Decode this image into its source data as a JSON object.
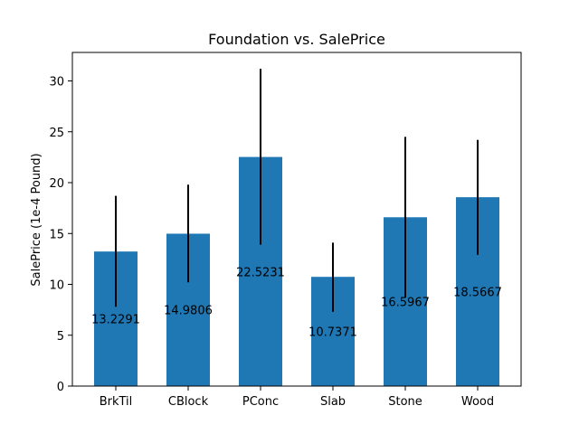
{
  "chart_data": {
    "type": "bar",
    "title": "Foundation vs. SalePrice",
    "xlabel": "",
    "ylabel": "SalePrice (1e-4 Pound)",
    "categories": [
      "BrkTil",
      "CBlock",
      "PConc",
      "Slab",
      "Stone",
      "Wood"
    ],
    "values": [
      13.2291,
      14.9806,
      22.5231,
      10.7371,
      16.5967,
      18.5667
    ],
    "value_labels": [
      "13.2291",
      "14.9806",
      "22.5231",
      "10.7371",
      "16.5967",
      "18.5667"
    ],
    "error_low": [
      7.8,
      10.2,
      13.9,
      7.3,
      8.7,
      12.9
    ],
    "error_high": [
      18.7,
      19.8,
      31.2,
      14.1,
      24.5,
      24.2
    ],
    "ylim": [
      0,
      32.8
    ],
    "yticks": [
      0,
      5,
      10,
      15,
      20,
      25,
      30
    ],
    "bar_color": "#1f77b4",
    "error_color": "#000000",
    "grid": false,
    "legend": "none"
  }
}
